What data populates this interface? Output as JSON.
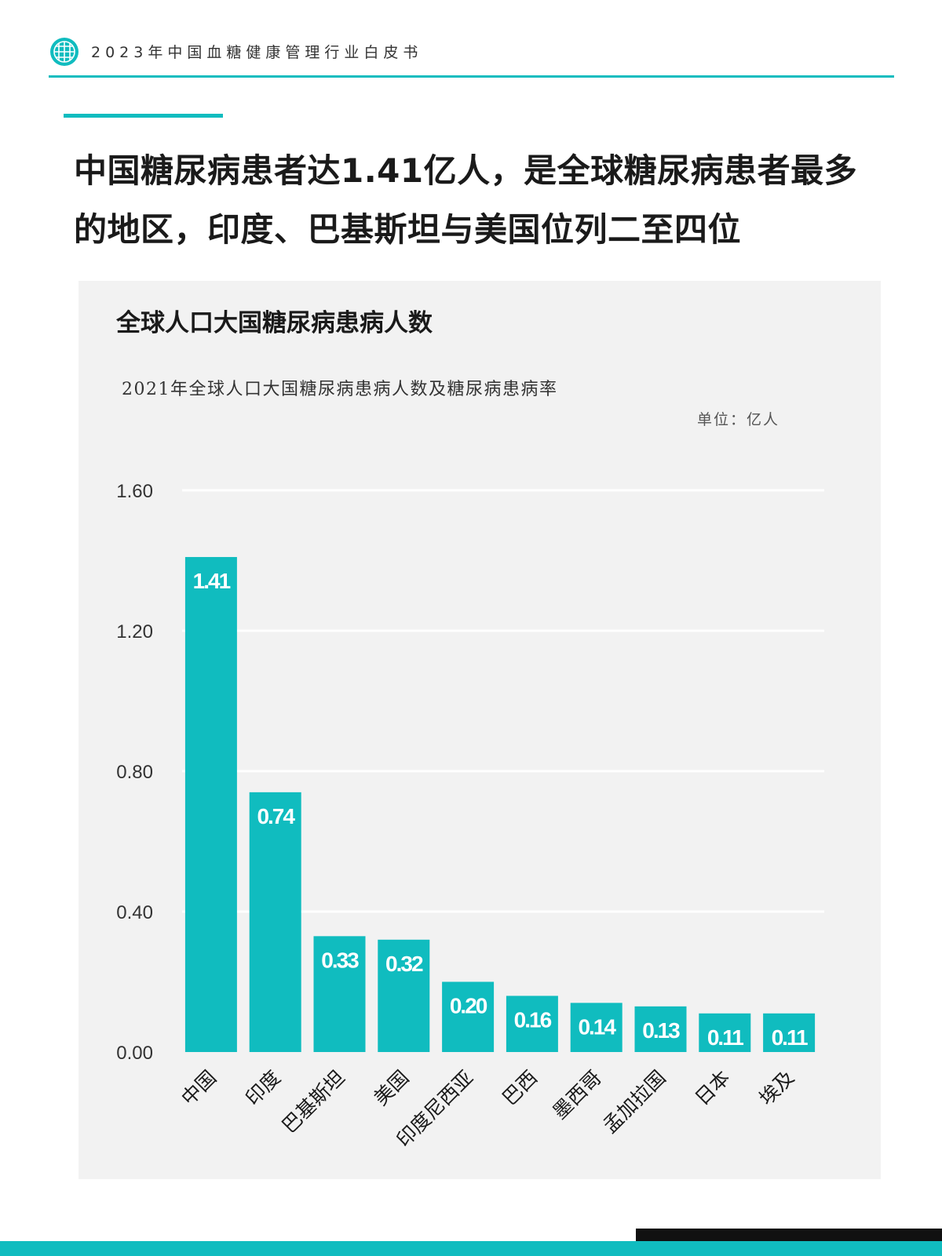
{
  "header": {
    "logo_icon": "globe-grid-icon",
    "title": "2023年中国血糖健康管理行业白皮书",
    "accent_color": "#10bcbf"
  },
  "headline": {
    "line1": "中国糖尿病患者达1.41亿人，是全球糖尿病患者最多",
    "line2": "的地区，印度、巴基斯坦与美国位列二至四位"
  },
  "panel": {
    "title": "全球人口大国糖尿病患病人数",
    "subtitle": "2021年全球人口大国糖尿病患病人数及糖尿病患病率",
    "unit": "单位：亿人"
  },
  "chart_data": {
    "type": "bar",
    "categories": [
      "中国",
      "印度",
      "巴基斯坦",
      "美国",
      "印度尼西亚",
      "巴西",
      "墨西哥",
      "孟加拉国",
      "日本",
      "埃及"
    ],
    "values": [
      1.41,
      0.74,
      0.33,
      0.32,
      0.2,
      0.16,
      0.14,
      0.13,
      0.11,
      0.11
    ],
    "value_labels": [
      "1.41",
      "0.74",
      "0.33",
      "0.32",
      "0.20",
      "0.16",
      "0.14",
      "0.13",
      "0.11",
      "0.11"
    ],
    "yticks": [
      "0.00",
      "0.40",
      "0.80",
      "1.20",
      "1.60"
    ],
    "ylim": [
      0,
      1.6
    ],
    "grid": true,
    "bar_color": "#10bcbf",
    "grid_color": "#ffffff"
  }
}
